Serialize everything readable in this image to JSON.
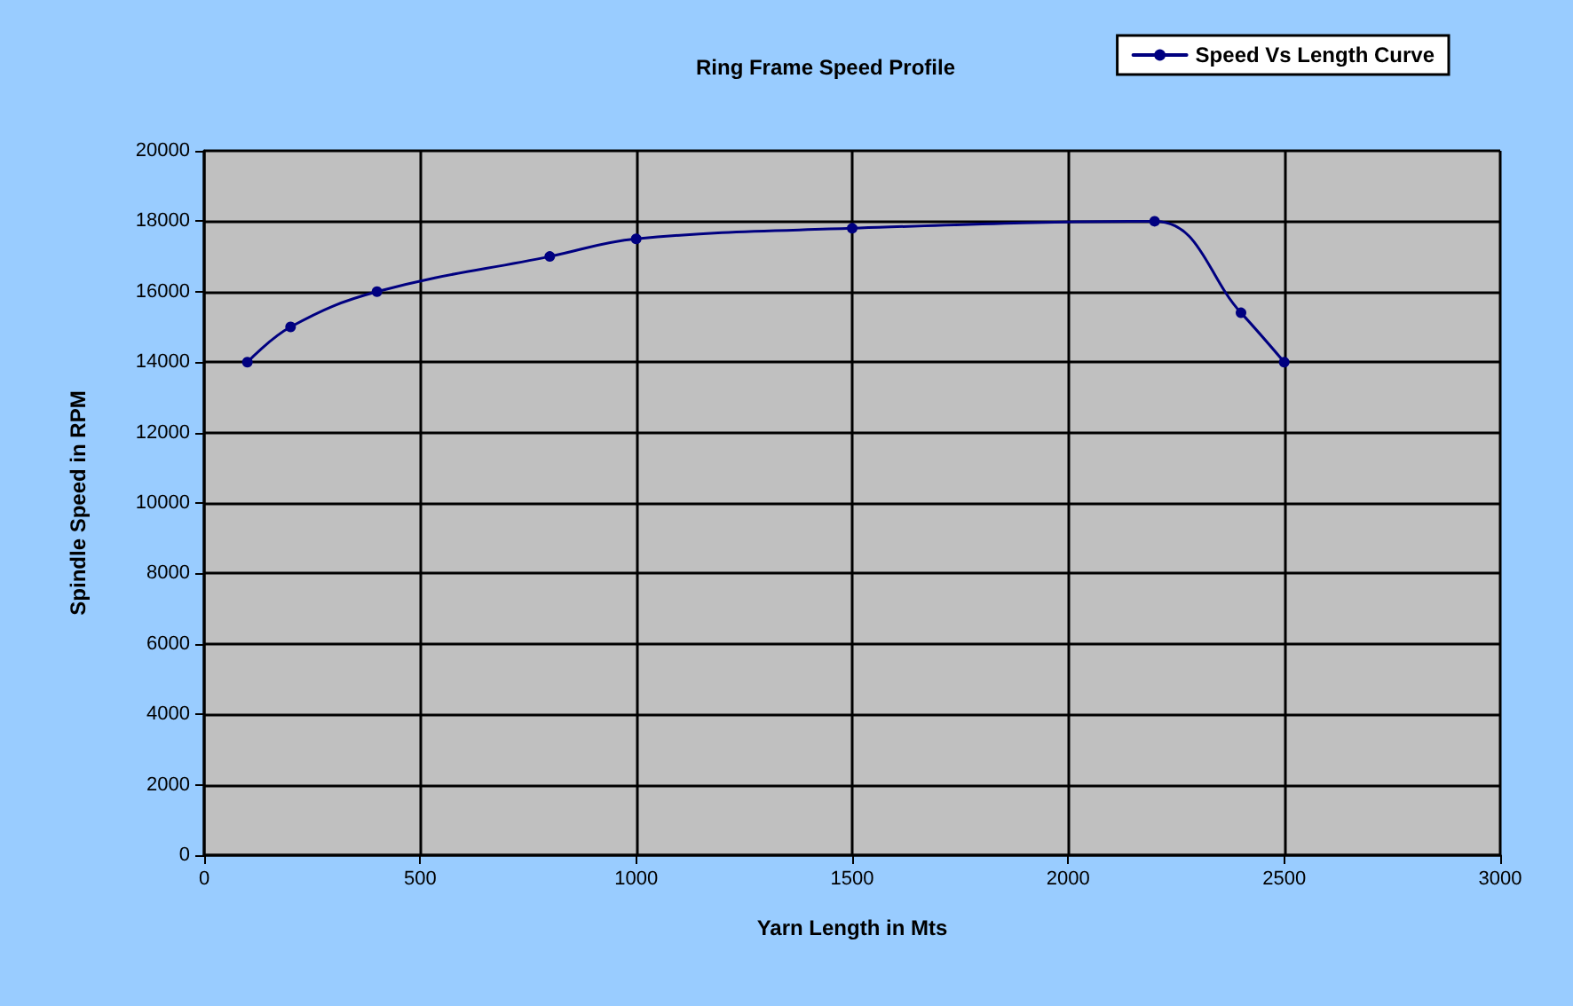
{
  "chart_data": {
    "type": "line",
    "title": "Ring Frame Speed Profile",
    "xlabel": "Yarn Length in Mts",
    "ylabel": "Spindle Speed in RPM",
    "x": [
      100,
      200,
      400,
      800,
      1000,
      1500,
      2200,
      2400,
      2500
    ],
    "series": [
      {
        "name": "Speed Vs Length Curve",
        "color": "#000080",
        "values": [
          14000,
          15000,
          16000,
          17000,
          17500,
          17800,
          18000,
          15400,
          14000
        ]
      }
    ],
    "xlim": [
      0,
      3000
    ],
    "xticks": [
      0,
      500,
      1000,
      1500,
      2000,
      2500,
      3000
    ],
    "ylim": [
      0,
      20000
    ],
    "yticks": [
      0,
      2000,
      4000,
      6000,
      8000,
      10000,
      12000,
      14000,
      16000,
      18000,
      20000
    ],
    "grid": true,
    "legend": "top right",
    "marker": "circle",
    "line_style": "solid"
  }
}
